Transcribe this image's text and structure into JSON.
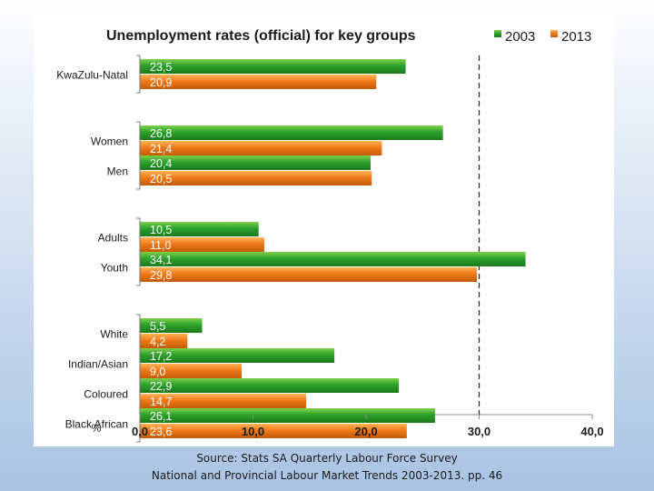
{
  "chart_data": {
    "type": "bar",
    "orientation": "horizontal",
    "title": "Unemployment rates (official) for key groups",
    "categories": [
      "KwaZulu-Natal",
      "Women",
      "Men",
      "Adults",
      "Youth",
      "White",
      "Indian/Asian",
      "Coloured",
      "Black African"
    ],
    "groups": [
      [
        0
      ],
      [
        1,
        2
      ],
      [
        3,
        4
      ],
      [
        5,
        6,
        7,
        8
      ]
    ],
    "series": [
      {
        "name": "2003",
        "color": "#2ea12e",
        "values": [
          23.5,
          26.8,
          20.4,
          10.5,
          34.1,
          5.5,
          17.2,
          22.9,
          26.1
        ]
      },
      {
        "name": "2013",
        "color": "#ef7b1a",
        "values": [
          20.9,
          21.4,
          20.5,
          11.0,
          29.8,
          4.2,
          9.0,
          14.7,
          23.6
        ]
      }
    ],
    "value_labels": {
      "2003": [
        "23,5",
        "26,8",
        "20,4",
        "10,5",
        "34,1",
        "5,5",
        "17,2",
        "22,9",
        "26,1"
      ],
      "2013": [
        "20,9",
        "21,4",
        "20,5",
        "11,0",
        "29,8",
        "4,2",
        "9,0",
        "14,7",
        "23,6"
      ]
    },
    "xlabel": "%",
    "xlim": [
      0,
      40
    ],
    "xticks": [
      0,
      10,
      20,
      30,
      40
    ],
    "xtick_labels": [
      "0,0",
      "10,0",
      "20,0",
      "30,0",
      "40,0"
    ],
    "legend": {
      "position": "top-right",
      "entries": [
        "2003",
        "2013"
      ]
    },
    "reference_line": 30
  },
  "footer": {
    "source_line1": "Source: Stats SA Quarterly Labour Force Survey",
    "source_line2": "National and Provincial Labour Market Trends  2003-2013. pp. 46"
  }
}
